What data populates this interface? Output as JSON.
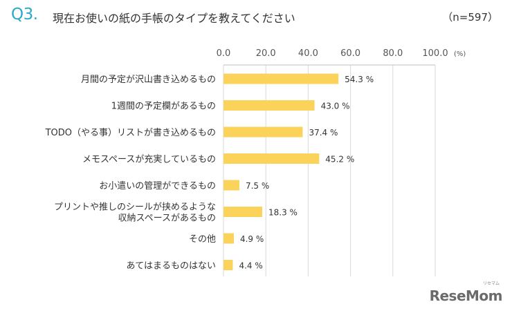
{
  "header": {
    "qno": "Q3.",
    "title": "現在お使いの紙の手帳のタイプを教えてください",
    "n_label": "（n=597）"
  },
  "logo": {
    "text": "ReseMom",
    "kana": "リセマム"
  },
  "chart_data": {
    "type": "bar",
    "orientation": "horizontal",
    "unit_label": "(%)",
    "xlim": [
      0,
      100
    ],
    "ticks": [
      "0.0",
      "20.0",
      "40.0",
      "60.0",
      "80.0",
      "100.0"
    ],
    "categories": [
      [
        "月間の予定が沢山書き込めるもの"
      ],
      [
        "1週間の予定欄があるもの"
      ],
      [
        "TODO（やる事）リストが書き込めるもの"
      ],
      [
        "メモスペースが充実しているもの"
      ],
      [
        "お小遣いの管理ができるもの"
      ],
      [
        "プリントや推しのシールが挟めるような",
        "収納スペースがあるもの"
      ],
      [
        "その他"
      ],
      [
        "あてはまるものはない"
      ]
    ],
    "values": [
      54.3,
      43.0,
      37.4,
      45.2,
      7.5,
      18.3,
      4.9,
      4.4
    ],
    "value_labels": [
      "54.3 %",
      "43.0 %",
      "37.4 %",
      "45.2 %",
      "7.5 %",
      "18.3 %",
      "4.9 %",
      "4.4 %"
    ],
    "bar_color": "#fbd25a",
    "grid": true
  }
}
